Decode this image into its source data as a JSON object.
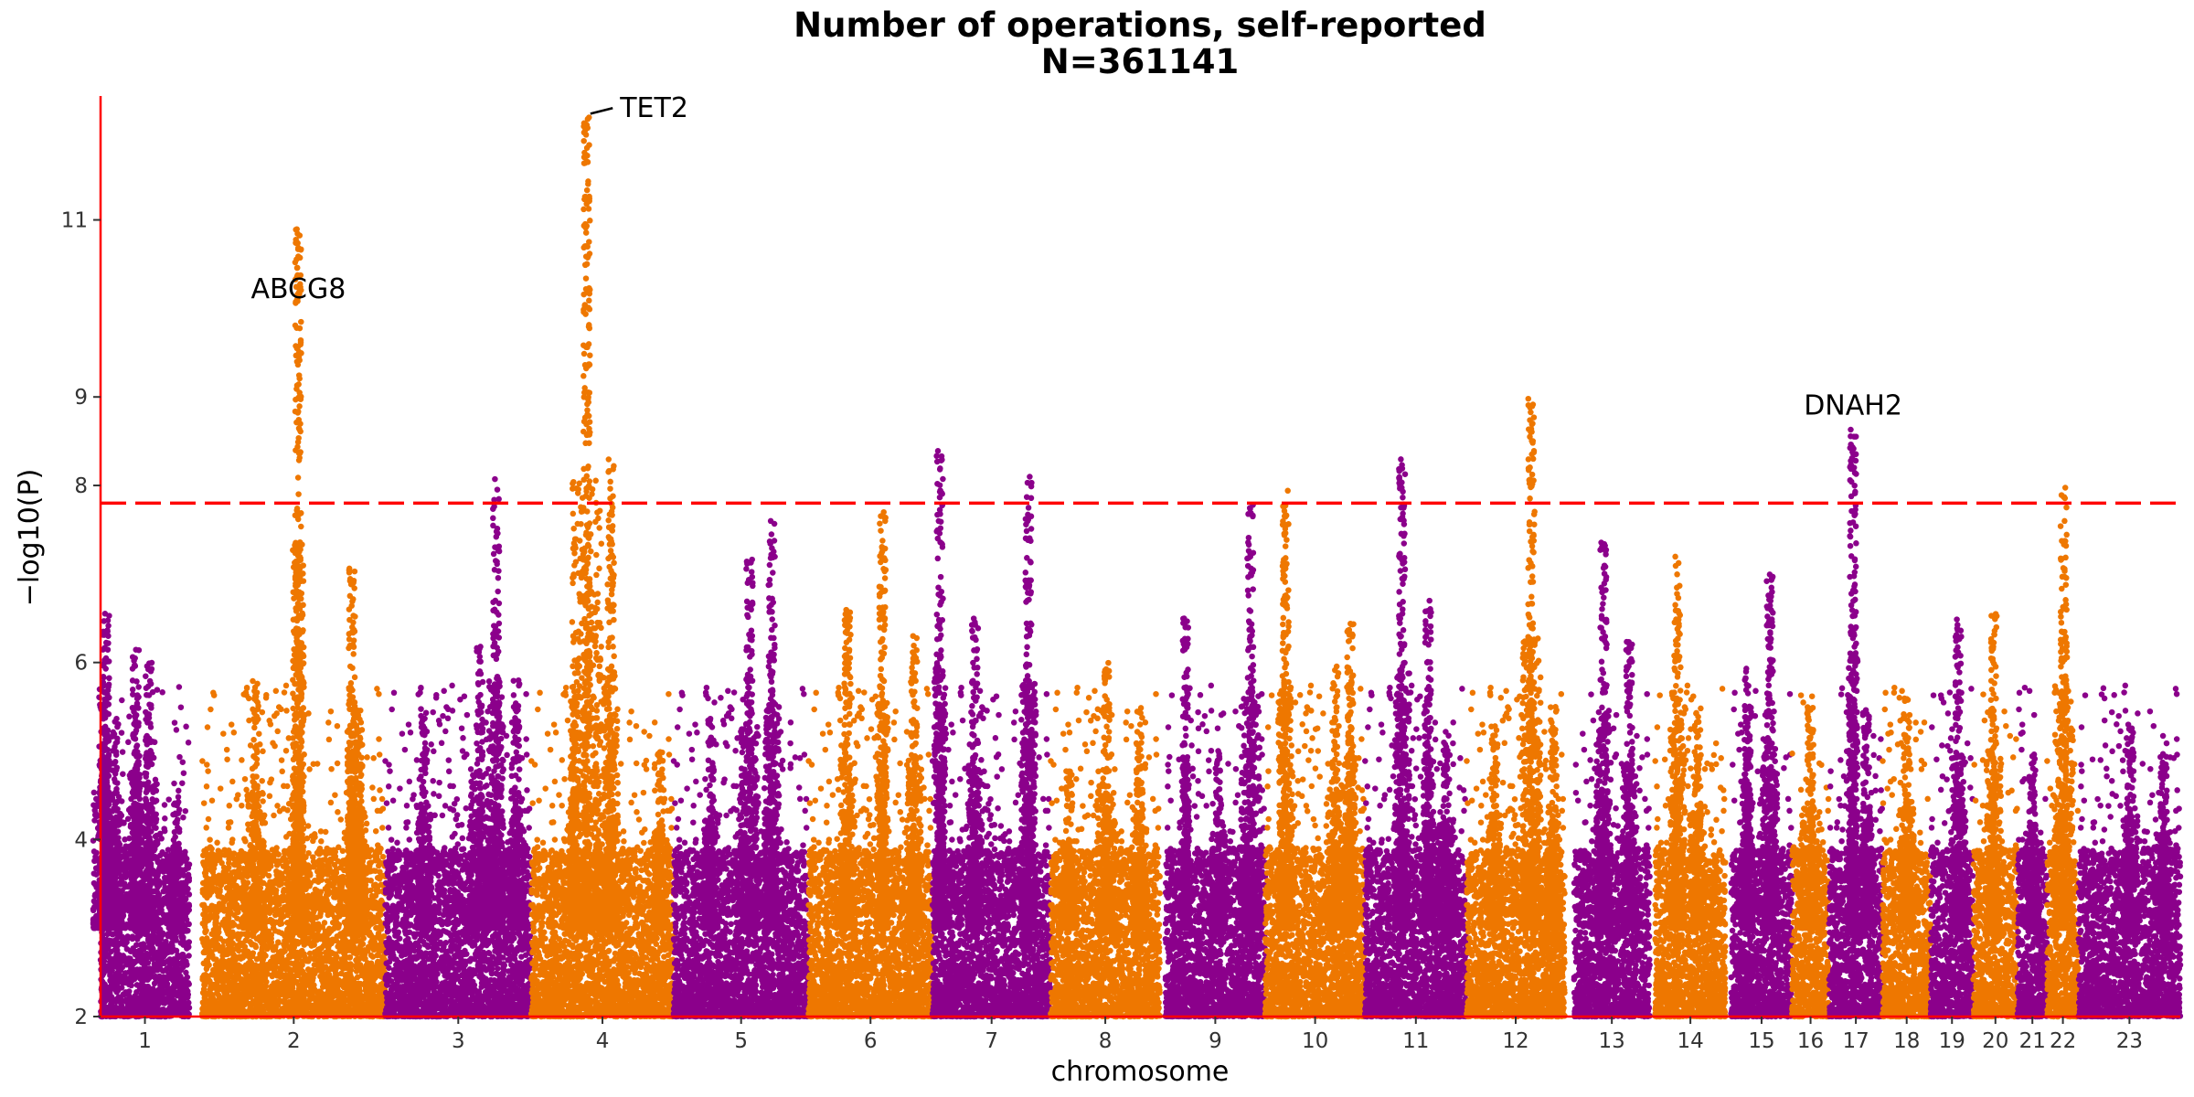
{
  "chart_data": {
    "type": "scatter",
    "title": "Number of operations, self-reported",
    "subtitle": "N=361141",
    "xlabel": "chromosome",
    "ylabel": "−log10(P)",
    "ylim": [
      2,
      12.4
    ],
    "yticks": [
      2,
      4,
      6,
      8,
      9,
      11
    ],
    "threshold": 7.8,
    "colors": {
      "odd": "#8B008B",
      "even": "#EE7700",
      "threshold": "#FF0000",
      "axis": "#FF0000",
      "label_line": "#000000"
    },
    "chromosomes": [
      {
        "label": "1",
        "start": 0.0,
        "end": 4.8,
        "peaks": [
          [
            0.1,
            5.8,
            1.0
          ],
          [
            0.3,
            6.6,
            0.4
          ],
          [
            0.8,
            5.4,
            0.8
          ],
          [
            1.9,
            6.2,
            0.6
          ],
          [
            2.6,
            6.0,
            1.0
          ],
          [
            4.1,
            4.5,
            0.8
          ]
        ]
      },
      {
        "label": "2",
        "start": 5.5,
        "end": 15.4,
        "peaks": [
          [
            10.7,
            10.9,
            0.6
          ],
          [
            13.6,
            7.2,
            0.5
          ],
          [
            8.4,
            5.8,
            1.0
          ],
          [
            14.0,
            5.5,
            0.8
          ]
        ]
      },
      {
        "label": "3",
        "start": 15.4,
        "end": 23.3,
        "peaks": [
          [
            21.4,
            8.1,
            0.8
          ],
          [
            20.5,
            6.2,
            1.0
          ],
          [
            17.5,
            5.5,
            0.8
          ],
          [
            22.5,
            5.8,
            0.8
          ]
        ]
      },
      {
        "label": "4",
        "start": 23.3,
        "end": 31.0,
        "peaks": [
          [
            26.3,
            12.2,
            1.6
          ],
          [
            27.6,
            8.3,
            0.8
          ],
          [
            25.6,
            5.8,
            0.6
          ],
          [
            30.3,
            5.0,
            0.8
          ]
        ]
      },
      {
        "label": "5",
        "start": 31.0,
        "end": 38.3,
        "peaks": [
          [
            35.1,
            7.2,
            1.0
          ],
          [
            36.3,
            7.6,
            0.8
          ],
          [
            33.0,
            5.4,
            0.8
          ]
        ]
      },
      {
        "label": "6",
        "start": 38.3,
        "end": 45.0,
        "peaks": [
          [
            42.3,
            7.7,
            0.6
          ],
          [
            40.4,
            6.6,
            0.8
          ],
          [
            44.0,
            6.3,
            0.8
          ]
        ]
      },
      {
        "label": "7",
        "start": 45.0,
        "end": 51.4,
        "peaks": [
          [
            45.4,
            8.4,
            0.6
          ],
          [
            50.2,
            8.1,
            0.8
          ],
          [
            47.3,
            6.5,
            0.8
          ]
        ]
      },
      {
        "label": "8",
        "start": 51.4,
        "end": 57.3,
        "peaks": [
          [
            54.4,
            6.0,
            1.0
          ],
          [
            56.2,
            5.5,
            0.8
          ],
          [
            52.4,
            4.8,
            0.8
          ]
        ]
      },
      {
        "label": "9",
        "start": 57.6,
        "end": 63.0,
        "peaks": [
          [
            62.2,
            7.8,
            1.0
          ],
          [
            60.5,
            5.0,
            0.8
          ],
          [
            58.7,
            6.5,
            0.4
          ]
        ]
      },
      {
        "label": "10",
        "start": 63.0,
        "end": 68.4,
        "peaks": [
          [
            64.1,
            8.0,
            0.8
          ],
          [
            66.8,
            6.0,
            1.0
          ],
          [
            67.6,
            6.5,
            0.6
          ]
        ]
      },
      {
        "label": "11",
        "start": 68.4,
        "end": 73.9,
        "peaks": [
          [
            70.4,
            8.3,
            0.8
          ],
          [
            71.8,
            6.7,
            0.6
          ],
          [
            72.8,
            5.2,
            1.0
          ]
        ]
      },
      {
        "label": "12",
        "start": 73.9,
        "end": 79.2,
        "peaks": [
          [
            77.4,
            9.0,
            1.0
          ],
          [
            75.4,
            5.3,
            0.8
          ],
          [
            78.6,
            5.5,
            0.8
          ]
        ]
      },
      {
        "label": "13",
        "start": 79.7,
        "end": 83.8,
        "peaks": [
          [
            81.3,
            7.4,
            0.8
          ],
          [
            82.7,
            6.3,
            0.8
          ]
        ]
      },
      {
        "label": "14",
        "start": 84.1,
        "end": 87.9,
        "peaks": [
          [
            85.3,
            7.2,
            0.8
          ],
          [
            86.4,
            5.5,
            0.8
          ]
        ]
      },
      {
        "label": "15",
        "start": 88.2,
        "end": 91.5,
        "peaks": [
          [
            90.3,
            7.0,
            0.8
          ],
          [
            89.1,
            6.0,
            0.6
          ]
        ]
      },
      {
        "label": "16",
        "start": 91.5,
        "end": 93.5,
        "peaks": [
          [
            92.5,
            5.5,
            1.0
          ]
        ]
      },
      {
        "label": "17",
        "start": 93.5,
        "end": 96.4,
        "peaks": [
          [
            94.8,
            8.7,
            0.5
          ],
          [
            95.5,
            5.5,
            0.6
          ]
        ]
      },
      {
        "label": "18",
        "start": 96.4,
        "end": 99.0,
        "peaks": [
          [
            97.7,
            5.6,
            0.8
          ]
        ]
      },
      {
        "label": "19",
        "start": 99.0,
        "end": 101.3,
        "peaks": [
          [
            100.5,
            6.5,
            0.8
          ]
        ]
      },
      {
        "label": "20",
        "start": 101.3,
        "end": 103.7,
        "peaks": [
          [
            102.4,
            6.6,
            0.8
          ]
        ]
      },
      {
        "label": "21",
        "start": 103.7,
        "end": 105.3,
        "peaks": [
          [
            104.5,
            5.0,
            0.8
          ]
        ]
      },
      {
        "label": "22",
        "start": 105.3,
        "end": 107.0,
        "peaks": [
          [
            106.2,
            8.0,
            1.0
          ]
        ]
      },
      {
        "label": "23",
        "start": 107.0,
        "end": 112.5,
        "peaks": [
          [
            109.8,
            5.3,
            0.8
          ],
          [
            111.6,
            5.0,
            0.8
          ]
        ]
      }
    ],
    "annotations": [
      {
        "gene": "ABCG8",
        "x": 10.7,
        "y": 10.9,
        "label_x": 10.7,
        "label_y": 10.12,
        "leader": false
      },
      {
        "gene": "TET2",
        "x": 26.3,
        "y": 12.2,
        "label_x": 28.1,
        "label_y": 12.16,
        "leader": true
      },
      {
        "gene": "DNAH2",
        "x": 94.8,
        "y": 8.7,
        "label_x": 94.8,
        "label_y": 8.8,
        "leader": false
      }
    ]
  }
}
